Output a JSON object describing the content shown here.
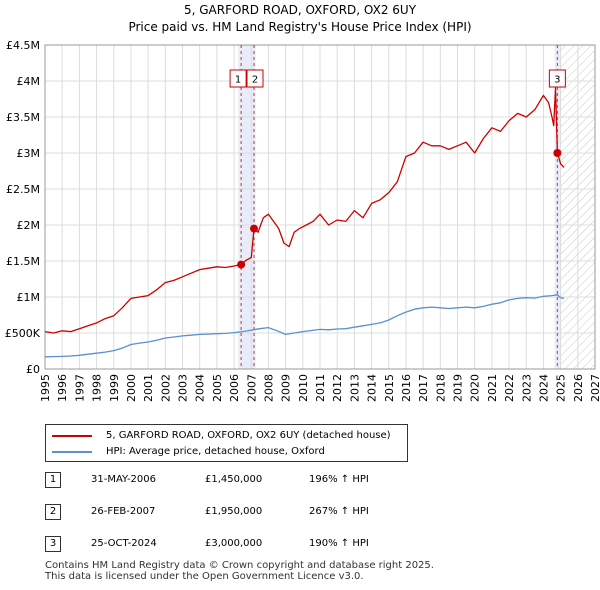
{
  "chart_data": {
    "type": "line",
    "title": "5, GARFORD ROAD, OXFORD, OX2 6UY",
    "subtitle": "Price paid vs. HM Land Registry's House Price Index (HPI)",
    "xlim": [
      1995,
      2027
    ],
    "ylim": [
      0,
      4500000
    ],
    "y_ticks": [
      0,
      500000,
      1000000,
      1500000,
      2000000,
      2500000,
      3000000,
      3500000,
      4000000,
      4500000
    ],
    "y_tick_labels": [
      "£0",
      "£500K",
      "£1M",
      "£1.5M",
      "£2M",
      "£2.5M",
      "£3M",
      "£3.5M",
      "£4M",
      "£4.5M"
    ],
    "x_ticks": [
      1995,
      1996,
      1997,
      1998,
      1999,
      2000,
      2001,
      2002,
      2003,
      2004,
      2005,
      2006,
      2007,
      2008,
      2009,
      2010,
      2011,
      2012,
      2013,
      2014,
      2015,
      2016,
      2017,
      2018,
      2019,
      2020,
      2021,
      2022,
      2023,
      2024,
      2025,
      2026,
      2027
    ],
    "grid": true,
    "hatch_from": 2025.0,
    "series": [
      {
        "name": "5, GARFORD ROAD, OXFORD, OX2 6UY (detached house)",
        "color": "#cc0000",
        "x": [
          1995.0,
          1995.5,
          1996.0,
          1996.5,
          1997.0,
          1997.5,
          1998.0,
          1998.5,
          1999.0,
          1999.5,
          2000.0,
          2000.5,
          2001.0,
          2001.5,
          2002.0,
          2002.5,
          2003.0,
          2003.5,
          2004.0,
          2004.5,
          2005.0,
          2005.5,
          2006.0,
          2006.41,
          2006.7,
          2007.0,
          2007.16,
          2007.4,
          2007.7,
          2008.0,
          2008.3,
          2008.6,
          2008.9,
          2009.2,
          2009.5,
          2009.8,
          2010.2,
          2010.6,
          2011.0,
          2011.5,
          2012.0,
          2012.5,
          2013.0,
          2013.5,
          2014.0,
          2014.5,
          2015.0,
          2015.5,
          2016.0,
          2016.5,
          2017.0,
          2017.5,
          2018.0,
          2018.5,
          2019.0,
          2019.5,
          2020.0,
          2020.5,
          2021.0,
          2021.5,
          2022.0,
          2022.5,
          2023.0,
          2023.5,
          2024.0,
          2024.3,
          2024.5,
          2024.6,
          2024.7,
          2024.81,
          2025.0,
          2025.2
        ],
        "values": [
          520000,
          500000,
          530000,
          520000,
          560000,
          600000,
          640000,
          700000,
          740000,
          850000,
          980000,
          1000000,
          1020000,
          1100000,
          1200000,
          1230000,
          1280000,
          1330000,
          1380000,
          1400000,
          1420000,
          1410000,
          1430000,
          1450000,
          1510000,
          1550000,
          1950000,
          1900000,
          2100000,
          2150000,
          2050000,
          1950000,
          1750000,
          1700000,
          1900000,
          1950000,
          2000000,
          2050000,
          2150000,
          2000000,
          2070000,
          2050000,
          2200000,
          2100000,
          2300000,
          2350000,
          2450000,
          2600000,
          2950000,
          3000000,
          3150000,
          3100000,
          3100000,
          3050000,
          3100000,
          3150000,
          3000000,
          3200000,
          3350000,
          3300000,
          3450000,
          3550000,
          3500000,
          3600000,
          3800000,
          3700000,
          3500000,
          3380000,
          3900000,
          3000000,
          2850000,
          2800000
        ]
      },
      {
        "name": "HPI: Average price, detached house, Oxford",
        "color": "#5b8fd1",
        "x": [
          1995.0,
          1995.5,
          1996.0,
          1996.5,
          1997.0,
          1997.5,
          1998.0,
          1998.5,
          1999.0,
          1999.5,
          2000.0,
          2000.5,
          2001.0,
          2001.5,
          2002.0,
          2002.5,
          2003.0,
          2003.5,
          2004.0,
          2004.5,
          2005.0,
          2005.5,
          2006.0,
          2006.5,
          2007.0,
          2007.5,
          2008.0,
          2008.5,
          2009.0,
          2009.5,
          2010.0,
          2010.5,
          2011.0,
          2011.5,
          2012.0,
          2012.5,
          2013.0,
          2013.5,
          2014.0,
          2014.5,
          2015.0,
          2015.5,
          2016.0,
          2016.5,
          2017.0,
          2017.5,
          2018.0,
          2018.5,
          2019.0,
          2019.5,
          2020.0,
          2020.5,
          2021.0,
          2021.5,
          2022.0,
          2022.5,
          2023.0,
          2023.5,
          2024.0,
          2024.5,
          2024.8,
          2025.0,
          2025.2
        ],
        "values": [
          170000,
          172000,
          175000,
          180000,
          190000,
          205000,
          220000,
          235000,
          255000,
          290000,
          340000,
          360000,
          375000,
          400000,
          430000,
          445000,
          460000,
          470000,
          480000,
          485000,
          490000,
          495000,
          505000,
          520000,
          540000,
          560000,
          575000,
          530000,
          480000,
          500000,
          520000,
          535000,
          550000,
          545000,
          555000,
          560000,
          580000,
          600000,
          620000,
          640000,
          680000,
          740000,
          790000,
          830000,
          850000,
          860000,
          850000,
          840000,
          850000,
          860000,
          850000,
          870000,
          900000,
          920000,
          960000,
          980000,
          990000,
          985000,
          1010000,
          1020000,
          1030000,
          990000,
          980000
        ]
      }
    ],
    "markers": [
      {
        "label": "1",
        "x": 2006.41,
        "y": 1450000
      },
      {
        "label": "2",
        "x": 2007.16,
        "y": 1950000
      },
      {
        "label": "3",
        "x": 2024.81,
        "y": 3000000
      }
    ],
    "shaded_ranges": [
      [
        2006.25,
        2007.25
      ],
      [
        2024.65,
        2025.0
      ]
    ]
  },
  "legend": {
    "items": [
      {
        "label": "5, GARFORD ROAD, OXFORD, OX2 6UY (detached house)",
        "color": "#cc0000"
      },
      {
        "label": "HPI: Average price, detached house, Oxford",
        "color": "#5b8fd1"
      }
    ]
  },
  "sales": [
    {
      "num": "1",
      "date": "31-MAY-2006",
      "price": "£1,450,000",
      "hpi": "196% ↑ HPI"
    },
    {
      "num": "2",
      "date": "26-FEB-2007",
      "price": "£1,950,000",
      "hpi": "267% ↑ HPI"
    },
    {
      "num": "3",
      "date": "25-OCT-2024",
      "price": "£3,000,000",
      "hpi": "190% ↑ HPI"
    }
  ],
  "footer": {
    "line1": "Contains HM Land Registry data © Crown copyright and database right 2025.",
    "line2": "This data is licensed under the Open Government Licence v3.0."
  }
}
